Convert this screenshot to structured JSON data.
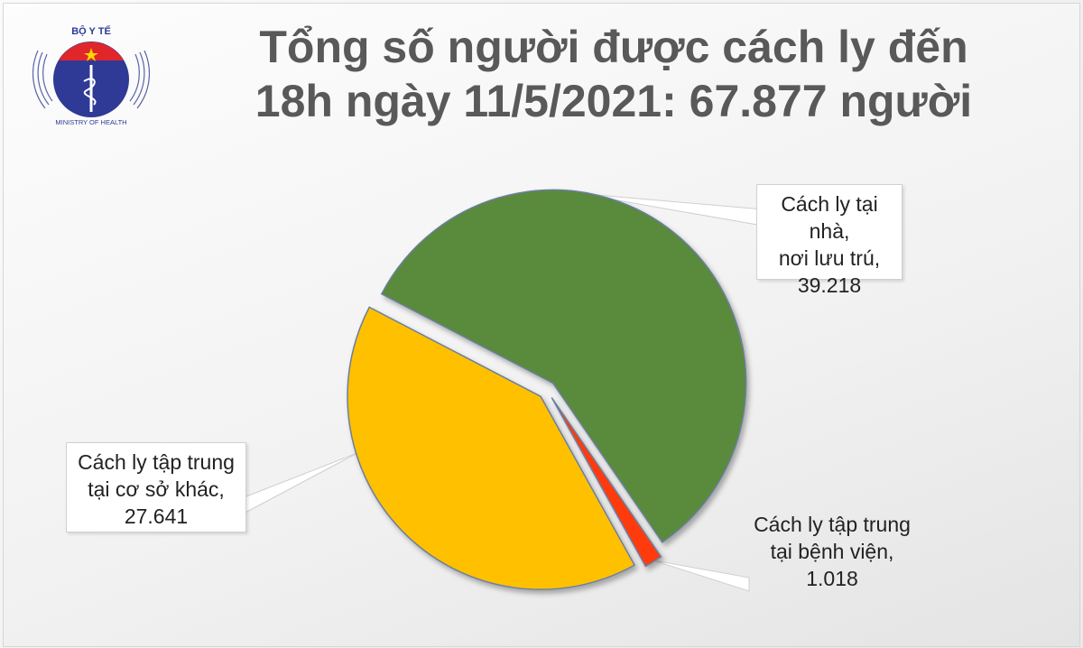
{
  "title_line1": "Tổng số người được cách ly đến",
  "title_line2": "18h ngày 11/5/2021: 67.877 người",
  "logo": {
    "text_top": "BỘ Y TẾ",
    "text_bottom": "MINISTRY OF HEALTH"
  },
  "chart_data": {
    "type": "pie",
    "title": "Tổng số người được cách ly đến 18h ngày 11/5/2021: 67.877 người",
    "total": 67877,
    "slices": [
      {
        "label_lines": [
          "Cách ly tại nhà,",
          "nơi lưu trú,",
          "39.218"
        ],
        "value": 39218,
        "color": "#5a8a3a"
      },
      {
        "label_lines": [
          "Cách ly tập trung",
          "tại bệnh viện,",
          "1.018"
        ],
        "value": 1018,
        "color": "#ff3b10"
      },
      {
        "label_lines": [
          "Cách ly tập trung",
          "tại cơ sở khác,",
          "27.641"
        ],
        "value": 27641,
        "color": "#ffc000"
      }
    ],
    "legend": "none",
    "exploded": true
  }
}
